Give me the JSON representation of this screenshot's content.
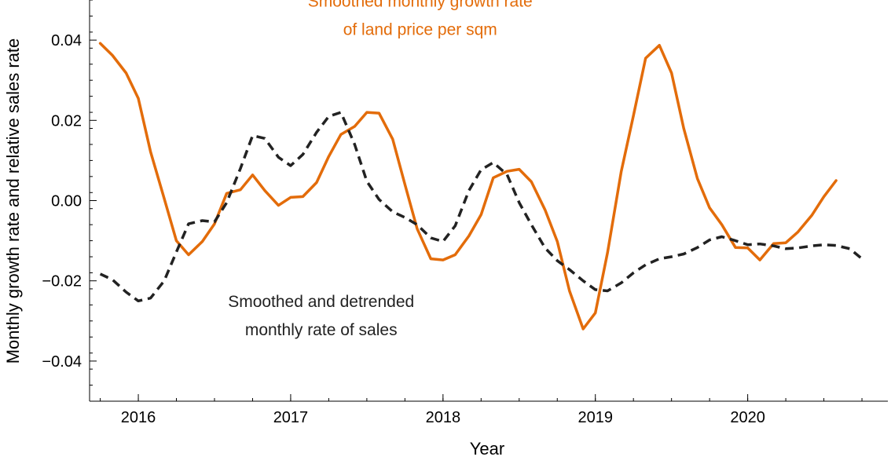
{
  "chart_data": {
    "type": "line",
    "xlabel": "Year",
    "ylabel": "Monthly growth rate and relative sales rate",
    "xlim": [
      2015.68,
      2020.92
    ],
    "ylim": [
      -0.05,
      0.05
    ],
    "x_ticks": [
      2016,
      2017,
      2018,
      2019,
      2020
    ],
    "x_tick_labels": [
      "2016",
      "2017",
      "2018",
      "2019",
      "2020"
    ],
    "y_ticks": [
      0.04,
      0.02,
      0.0,
      -0.02,
      -0.04
    ],
    "y_tick_labels": [
      "0.04",
      "0.02",
      "0.00",
      "−0.02",
      "−0.04"
    ],
    "grid": false,
    "series": [
      {
        "name": "Smoothed monthly growth rate of land price per sqm",
        "color": "#e36c0a",
        "style": "solid",
        "points": [
          [
            2015.75,
            0.0392
          ],
          [
            2015.83,
            0.0362
          ],
          [
            2015.92,
            0.0318
          ],
          [
            2016.0,
            0.0255
          ],
          [
            2016.08,
            0.0122
          ],
          [
            2016.17,
            0.0005
          ],
          [
            2016.25,
            -0.01
          ],
          [
            2016.33,
            -0.0135
          ],
          [
            2016.42,
            -0.0102
          ],
          [
            2016.5,
            -0.0058
          ],
          [
            2016.58,
            0.0018
          ],
          [
            2016.67,
            0.0027
          ],
          [
            2016.75,
            0.0064
          ],
          [
            2016.83,
            0.0025
          ],
          [
            2016.92,
            -0.0012
          ],
          [
            2017.0,
            0.0008
          ],
          [
            2017.08,
            0.001
          ],
          [
            2017.17,
            0.0045
          ],
          [
            2017.25,
            0.011
          ],
          [
            2017.33,
            0.0165
          ],
          [
            2017.42,
            0.0185
          ],
          [
            2017.5,
            0.022
          ],
          [
            2017.58,
            0.0218
          ],
          [
            2017.67,
            0.0153
          ],
          [
            2017.75,
            0.004
          ],
          [
            2017.83,
            -0.007
          ],
          [
            2017.92,
            -0.0145
          ],
          [
            2018.0,
            -0.0148
          ],
          [
            2018.08,
            -0.0135
          ],
          [
            2018.17,
            -0.0088
          ],
          [
            2018.25,
            -0.0035
          ],
          [
            2018.33,
            0.0057
          ],
          [
            2018.42,
            0.0073
          ],
          [
            2018.5,
            0.0078
          ],
          [
            2018.58,
            0.0047
          ],
          [
            2018.67,
            -0.0023
          ],
          [
            2018.75,
            -0.0102
          ],
          [
            2018.83,
            -0.0225
          ],
          [
            2018.92,
            -0.032
          ],
          [
            2019.0,
            -0.028
          ],
          [
            2019.08,
            -0.013
          ],
          [
            2019.17,
            0.0073
          ],
          [
            2019.25,
            0.0212
          ],
          [
            2019.33,
            0.0355
          ],
          [
            2019.42,
            0.0387
          ],
          [
            2019.5,
            0.0318
          ],
          [
            2019.58,
            0.018
          ],
          [
            2019.67,
            0.0055
          ],
          [
            2019.75,
            -0.0018
          ],
          [
            2019.83,
            -0.006
          ],
          [
            2019.92,
            -0.0117
          ],
          [
            2020.0,
            -0.0118
          ],
          [
            2020.08,
            -0.0148
          ],
          [
            2020.17,
            -0.0107
          ],
          [
            2020.25,
            -0.0105
          ],
          [
            2020.33,
            -0.0078
          ],
          [
            2020.42,
            -0.0037
          ],
          [
            2020.5,
            0.001
          ],
          [
            2020.58,
            0.005
          ]
        ]
      },
      {
        "name": "Smoothed and detrended monthly rate of sales",
        "color": "#222222",
        "style": "dashed",
        "points": [
          [
            2015.75,
            -0.0183
          ],
          [
            2015.83,
            -0.0197
          ],
          [
            2015.92,
            -0.0228
          ],
          [
            2016.0,
            -0.025
          ],
          [
            2016.08,
            -0.0243
          ],
          [
            2016.17,
            -0.02
          ],
          [
            2016.25,
            -0.0128
          ],
          [
            2016.33,
            -0.0058
          ],
          [
            2016.42,
            -0.005
          ],
          [
            2016.5,
            -0.0053
          ],
          [
            2016.58,
            -0.0005
          ],
          [
            2016.67,
            0.008
          ],
          [
            2016.75,
            0.0162
          ],
          [
            2016.83,
            0.0155
          ],
          [
            2016.92,
            0.0108
          ],
          [
            2017.0,
            0.0087
          ],
          [
            2017.08,
            0.0115
          ],
          [
            2017.17,
            0.017
          ],
          [
            2017.25,
            0.021
          ],
          [
            2017.33,
            0.022
          ],
          [
            2017.42,
            0.014
          ],
          [
            2017.5,
            0.0048
          ],
          [
            2017.58,
            0.0003
          ],
          [
            2017.67,
            -0.0028
          ],
          [
            2017.75,
            -0.0042
          ],
          [
            2017.83,
            -0.006
          ],
          [
            2017.92,
            -0.0093
          ],
          [
            2018.0,
            -0.0102
          ],
          [
            2018.08,
            -0.0063
          ],
          [
            2018.17,
            0.0025
          ],
          [
            2018.25,
            0.0077
          ],
          [
            2018.33,
            0.0095
          ],
          [
            2018.42,
            0.0065
          ],
          [
            2018.5,
            -0.0005
          ],
          [
            2018.58,
            -0.006
          ],
          [
            2018.67,
            -0.0118
          ],
          [
            2018.75,
            -0.015
          ],
          [
            2018.83,
            -0.0172
          ],
          [
            2018.92,
            -0.02
          ],
          [
            2019.0,
            -0.0222
          ],
          [
            2019.08,
            -0.0225
          ],
          [
            2019.17,
            -0.0205
          ],
          [
            2019.25,
            -0.018
          ],
          [
            2019.33,
            -0.016
          ],
          [
            2019.42,
            -0.0145
          ],
          [
            2019.5,
            -0.014
          ],
          [
            2019.58,
            -0.0133
          ],
          [
            2019.67,
            -0.0117
          ],
          [
            2019.75,
            -0.0098
          ],
          [
            2019.83,
            -0.009
          ],
          [
            2019.92,
            -0.01
          ],
          [
            2020.0,
            -0.011
          ],
          [
            2020.08,
            -0.0108
          ],
          [
            2020.17,
            -0.0113
          ],
          [
            2020.25,
            -0.012
          ],
          [
            2020.33,
            -0.0118
          ],
          [
            2020.42,
            -0.0113
          ],
          [
            2020.5,
            -0.011
          ],
          [
            2020.58,
            -0.0112
          ],
          [
            2020.67,
            -0.012
          ],
          [
            2020.75,
            -0.0145
          ]
        ]
      }
    ],
    "annotations": [
      {
        "lines": [
          "Smoothed monthly growth rate",
          "of land price per sqm"
        ],
        "color": "#e36c0a",
        "at": [
          2017.85,
          0.0483
        ]
      },
      {
        "lines": [
          "Smoothed and detrended",
          "monthly rate of sales"
        ],
        "color": "#222222",
        "at": [
          2017.2,
          -0.0265
        ]
      }
    ]
  }
}
